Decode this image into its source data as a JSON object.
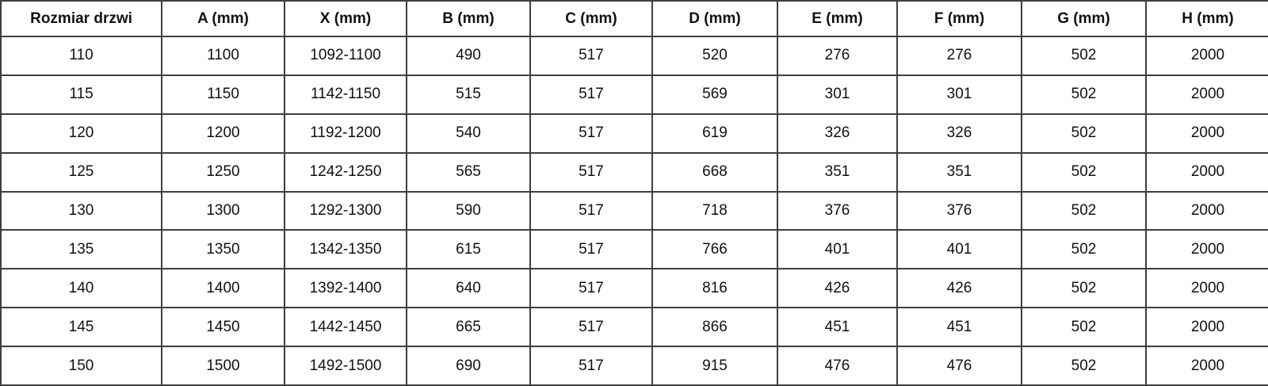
{
  "table": {
    "columns": [
      "Rozmiar drzwi",
      "A (mm)",
      "X (mm)",
      "B (mm)",
      "C (mm)",
      "D (mm)",
      "E (mm)",
      "F (mm)",
      "G (mm)",
      "H (mm)"
    ],
    "rows": [
      [
        "110",
        "1100",
        "1092-1100",
        "490",
        "517",
        "520",
        "276",
        "276",
        "502",
        "2000"
      ],
      [
        "115",
        "1150",
        "1142-1150",
        "515",
        "517",
        "569",
        "301",
        "301",
        "502",
        "2000"
      ],
      [
        "120",
        "1200",
        "1192-1200",
        "540",
        "517",
        "619",
        "326",
        "326",
        "502",
        "2000"
      ],
      [
        "125",
        "1250",
        "1242-1250",
        "565",
        "517",
        "668",
        "351",
        "351",
        "502",
        "2000"
      ],
      [
        "130",
        "1300",
        "1292-1300",
        "590",
        "517",
        "718",
        "376",
        "376",
        "502",
        "2000"
      ],
      [
        "135",
        "1350",
        "1342-1350",
        "615",
        "517",
        "766",
        "401",
        "401",
        "502",
        "2000"
      ],
      [
        "140",
        "1400",
        "1392-1400",
        "640",
        "517",
        "816",
        "426",
        "426",
        "502",
        "2000"
      ],
      [
        "145",
        "1450",
        "1442-1450",
        "665",
        "517",
        "866",
        "451",
        "451",
        "502",
        "2000"
      ],
      [
        "150",
        "1500",
        "1492-1500",
        "690",
        "517",
        "915",
        "476",
        "476",
        "502",
        "2000"
      ]
    ],
    "colors": {
      "border": "#3e3e3e",
      "text": "#111111",
      "background": "#ffffff"
    }
  }
}
